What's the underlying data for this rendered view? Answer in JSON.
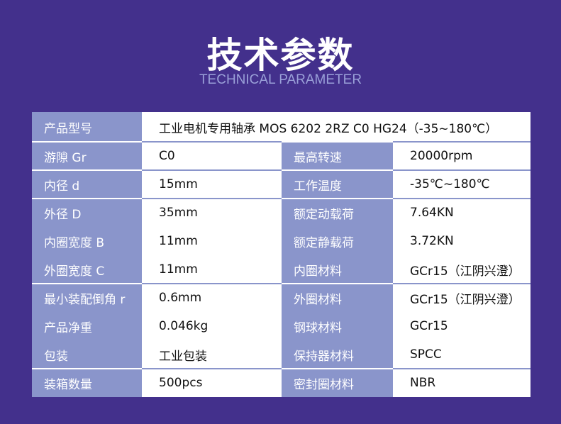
{
  "header": {
    "title": "技术参数",
    "subtitle": "TECHNICAL PARAMETER"
  },
  "model": {
    "label": "产品型号",
    "value": "工业电机专用轴承 MOS 6202 2RZ C0 HG24（-35~180℃）"
  },
  "rows": [
    {
      "l1": "游隙 Gr",
      "v1": "C0",
      "l2": "最高转速",
      "v2": "20000rpm"
    },
    {
      "l1": "内径 d",
      "v1": "15mm",
      "l2": "工作温度",
      "v2": "-35℃~180℃"
    },
    {
      "l1": "外径 D",
      "v1": "35mm",
      "l2": "额定动载荷",
      "v2": "7.64KN"
    },
    {
      "l1": "内圈宽度 B",
      "v1": "11mm",
      "l2": "额定静载荷",
      "v2": "3.72KN"
    },
    {
      "l1": "外圈宽度 C",
      "v1": "11mm",
      "l2": "内圈材料",
      "v2": "GCr15（江阴兴澄）"
    },
    {
      "l1": "最小装配倒角 r",
      "v1": "0.6mm",
      "l2": "外圈材料",
      "v2": "GCr15（江阴兴澄）"
    },
    {
      "l1": "产品净重",
      "v1": "0.046kg",
      "l2": "钢球材料",
      "v2": "GCr15"
    },
    {
      "l1": "包装",
      "v1": "工业包装",
      "l2": "保持器材料",
      "v2": "SPCC"
    },
    {
      "l1": "装箱数量",
      "v1": "500pcs",
      "l2": "密封圈材料",
      "v2": "NBR"
    }
  ],
  "colors": {
    "background": "#43308c",
    "label_bg": "#8a95cb"
  }
}
